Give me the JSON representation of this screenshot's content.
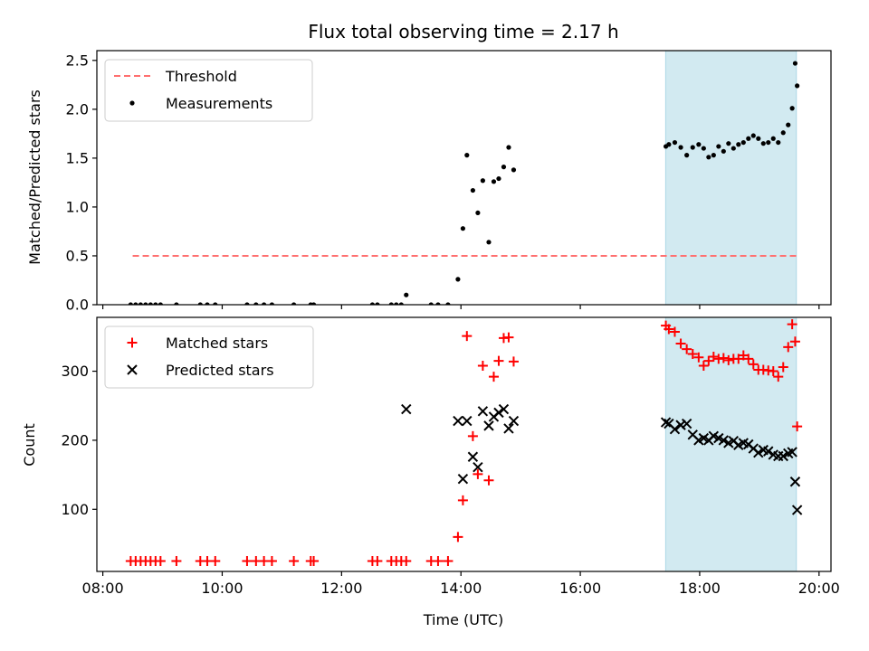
{
  "chart_data": {
    "type": "scatter",
    "title": "Flux total observing time = 2.17 h",
    "xlabel": "Time (UTC)",
    "x_ticks": [
      "08:00",
      "10:00",
      "12:00",
      "14:00",
      "16:00",
      "18:00",
      "20:00"
    ],
    "x_range_hours": [
      7.9,
      20.2
    ],
    "highlight_span_hours": [
      17.43,
      19.62
    ],
    "highlight_color": "#add8e6",
    "panels": [
      {
        "ylabel": "Matched/Predicted stars",
        "ylim": [
          0,
          2.6
        ],
        "y_ticks": [
          "0.0",
          "0.5",
          "1.0",
          "1.5",
          "2.0",
          "2.5"
        ],
        "legend_position": "upper-left",
        "threshold": {
          "name": "Threshold",
          "value": 0.5,
          "x_range": [
            8.5,
            19.62
          ],
          "color": "#ff7070"
        },
        "series": [
          {
            "name": "Measurements",
            "marker": "dot",
            "color": "#000000",
            "points": [
              [
                "08:28",
                0.0
              ],
              [
                "08:33",
                0.0
              ],
              [
                "08:38",
                0.0
              ],
              [
                "08:43",
                0.0
              ],
              [
                "08:48",
                0.0
              ],
              [
                "08:53",
                0.0
              ],
              [
                "08:58",
                0.0
              ],
              [
                "09:14",
                0.0
              ],
              [
                "09:38",
                0.0
              ],
              [
                "09:45",
                0.0
              ],
              [
                "09:53",
                0.0
              ],
              [
                "10:25",
                0.0
              ],
              [
                "10:34",
                0.0
              ],
              [
                "10:42",
                0.0
              ],
              [
                "10:50",
                0.0
              ],
              [
                "11:12",
                0.0
              ],
              [
                "11:29",
                0.0
              ],
              [
                "11:32",
                0.0
              ],
              [
                "12:31",
                0.0
              ],
              [
                "12:36",
                0.0
              ],
              [
                "12:50",
                0.0
              ],
              [
                "12:55",
                0.0
              ],
              [
                "13:00",
                0.0
              ],
              [
                "13:05",
                0.1
              ],
              [
                "13:30",
                0.0
              ],
              [
                "13:37",
                0.0
              ],
              [
                "13:47",
                0.0
              ],
              [
                "13:57",
                0.26
              ],
              [
                "14:02",
                0.78
              ],
              [
                "14:06",
                1.53
              ],
              [
                "14:12",
                1.17
              ],
              [
                "14:17",
                0.94
              ],
              [
                "14:22",
                1.27
              ],
              [
                "14:28",
                0.64
              ],
              [
                "14:33",
                1.26
              ],
              [
                "14:38",
                1.29
              ],
              [
                "14:43",
                1.41
              ],
              [
                "14:48",
                1.61
              ],
              [
                "14:53",
                1.38
              ],
              [
                "17:26",
                1.62
              ],
              [
                "17:29",
                1.64
              ],
              [
                "17:35",
                1.66
              ],
              [
                "17:41",
                1.61
              ],
              [
                "17:47",
                1.53
              ],
              [
                "17:53",
                1.61
              ],
              [
                "17:59",
                1.64
              ],
              [
                "18:04",
                1.6
              ],
              [
                "18:09",
                1.51
              ],
              [
                "18:14",
                1.53
              ],
              [
                "18:19",
                1.62
              ],
              [
                "18:24",
                1.57
              ],
              [
                "18:29",
                1.65
              ],
              [
                "18:34",
                1.6
              ],
              [
                "18:39",
                1.64
              ],
              [
                "18:44",
                1.66
              ],
              [
                "18:49",
                1.7
              ],
              [
                "18:54",
                1.73
              ],
              [
                "18:59",
                1.7
              ],
              [
                "19:04",
                1.65
              ],
              [
                "19:09",
                1.66
              ],
              [
                "19:14",
                1.7
              ],
              [
                "19:19",
                1.66
              ],
              [
                "19:24",
                1.76
              ],
              [
                "19:29",
                1.84
              ],
              [
                "19:33",
                2.01
              ],
              [
                "19:36",
                2.47
              ],
              [
                "19:38",
                2.24
              ]
            ]
          }
        ]
      },
      {
        "ylabel": "Count",
        "ylim": [
          10,
          378
        ],
        "y_ticks": [
          "100",
          "200",
          "300"
        ],
        "legend_position": "upper-left",
        "series": [
          {
            "name": "Matched stars",
            "marker": "plus",
            "color": "#ff0000",
            "points": [
              [
                "08:28",
                25
              ],
              [
                "08:33",
                25
              ],
              [
                "08:38",
                25
              ],
              [
                "08:43",
                25
              ],
              [
                "08:48",
                25
              ],
              [
                "08:53",
                25
              ],
              [
                "08:58",
                25
              ],
              [
                "09:14",
                25
              ],
              [
                "09:38",
                25
              ],
              [
                "09:45",
                25
              ],
              [
                "09:53",
                25
              ],
              [
                "10:25",
                25
              ],
              [
                "10:34",
                25
              ],
              [
                "10:42",
                25
              ],
              [
                "10:50",
                25
              ],
              [
                "11:12",
                25
              ],
              [
                "11:29",
                25
              ],
              [
                "11:32",
                25
              ],
              [
                "12:31",
                25
              ],
              [
                "12:36",
                25
              ],
              [
                "12:50",
                25
              ],
              [
                "12:55",
                25
              ],
              [
                "13:00",
                25
              ],
              [
                "13:05",
                25
              ],
              [
                "13:30",
                25
              ],
              [
                "13:37",
                25
              ],
              [
                "13:47",
                25
              ],
              [
                "13:57",
                60
              ],
              [
                "14:02",
                113
              ],
              [
                "14:06",
                351
              ],
              [
                "14:12",
                206
              ],
              [
                "14:17",
                151
              ],
              [
                "14:22",
                308
              ],
              [
                "14:28",
                142
              ],
              [
                "14:33",
                292
              ],
              [
                "14:38",
                315
              ],
              [
                "14:43",
                348
              ],
              [
                "14:48",
                349
              ],
              [
                "14:53",
                314
              ],
              [
                "17:26",
                366
              ],
              [
                "17:29",
                361
              ],
              [
                "17:35",
                357
              ],
              [
                "17:41",
                340
              ],
              [
                "17:47",
                332
              ],
              [
                "17:53",
                325
              ],
              [
                "17:59",
                320
              ],
              [
                "18:04",
                308
              ],
              [
                "18:09",
                315
              ],
              [
                "18:14",
                321
              ],
              [
                "18:19",
                318
              ],
              [
                "18:24",
                319
              ],
              [
                "18:29",
                316
              ],
              [
                "18:34",
                318
              ],
              [
                "18:39",
                318
              ],
              [
                "18:44",
                323
              ],
              [
                "18:49",
                318
              ],
              [
                "18:54",
                310
              ],
              [
                "18:59",
                302
              ],
              [
                "19:04",
                302
              ],
              [
                "19:09",
                301
              ],
              [
                "19:14",
                300
              ],
              [
                "19:19",
                292
              ],
              [
                "19:24",
                306
              ],
              [
                "19:29",
                335
              ],
              [
                "19:33",
                368
              ],
              [
                "19:36",
                343
              ],
              [
                "19:38",
                220
              ]
            ]
          },
          {
            "name": "Predicted stars",
            "marker": "x",
            "color": "#000000",
            "points": [
              [
                "13:05",
                245
              ],
              [
                "13:57",
                228
              ],
              [
                "14:02",
                144
              ],
              [
                "14:06",
                228
              ],
              [
                "14:12",
                176
              ],
              [
                "14:17",
                161
              ],
              [
                "14:22",
                242
              ],
              [
                "14:28",
                221
              ],
              [
                "14:33",
                234
              ],
              [
                "14:38",
                240
              ],
              [
                "14:43",
                245
              ],
              [
                "14:48",
                217
              ],
              [
                "14:53",
                228
              ],
              [
                "17:26",
                226
              ],
              [
                "17:29",
                224
              ],
              [
                "17:35",
                216
              ],
              [
                "17:41",
                222
              ],
              [
                "17:47",
                224
              ],
              [
                "17:53",
                208
              ],
              [
                "17:59",
                200
              ],
              [
                "18:04",
                203
              ],
              [
                "18:09",
                200
              ],
              [
                "18:14",
                206
              ],
              [
                "18:19",
                203
              ],
              [
                "18:24",
                200
              ],
              [
                "18:29",
                196
              ],
              [
                "18:34",
                199
              ],
              [
                "18:39",
                193
              ],
              [
                "18:44",
                196
              ],
              [
                "18:49",
                194
              ],
              [
                "18:54",
                188
              ],
              [
                "18:59",
                182
              ],
              [
                "19:04",
                186
              ],
              [
                "19:09",
                184
              ],
              [
                "19:14",
                179
              ],
              [
                "19:19",
                177
              ],
              [
                "19:24",
                177
              ],
              [
                "19:29",
                181
              ],
              [
                "19:33",
                183
              ],
              [
                "19:36",
                140
              ],
              [
                "19:38",
                99
              ]
            ]
          }
        ]
      }
    ]
  }
}
